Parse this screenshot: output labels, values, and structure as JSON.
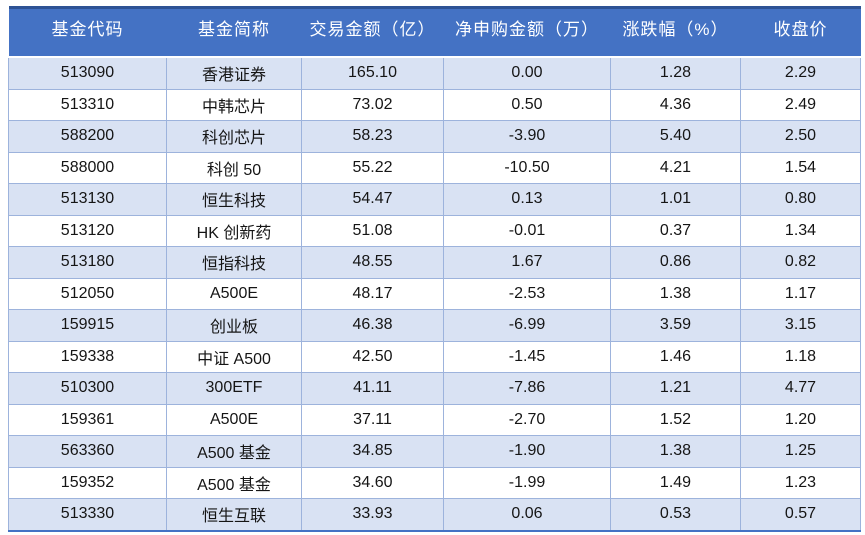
{
  "chart_data": {
    "type": "table",
    "title": "",
    "columns": [
      "基金代码",
      "基金简称",
      "交易金额（亿）",
      "净申购金额（万）",
      "涨跌幅（%）",
      "收盘价"
    ],
    "column_keys": [
      "fund-code",
      "fund-name",
      "trade-amount-yi",
      "net-subscription-wan",
      "change-pct",
      "close-price"
    ],
    "rows": [
      [
        "513090",
        "香港证券",
        "165.10",
        "0.00",
        "1.28",
        "2.29"
      ],
      [
        "513310",
        "中韩芯片",
        "73.02",
        "0.50",
        "4.36",
        "2.49"
      ],
      [
        "588200",
        "科创芯片",
        "58.23",
        "-3.90",
        "5.40",
        "2.50"
      ],
      [
        "588000",
        "科创 50",
        "55.22",
        "-10.50",
        "4.21",
        "1.54"
      ],
      [
        "513130",
        "恒生科技",
        "54.47",
        "0.13",
        "1.01",
        "0.80"
      ],
      [
        "513120",
        "HK 创新药",
        "51.08",
        "-0.01",
        "0.37",
        "1.34"
      ],
      [
        "513180",
        "恒指科技",
        "48.55",
        "1.67",
        "0.86",
        "0.82"
      ],
      [
        "512050",
        "A500E",
        "48.17",
        "-2.53",
        "1.38",
        "1.17"
      ],
      [
        "159915",
        "创业板",
        "46.38",
        "-6.99",
        "3.59",
        "3.15"
      ],
      [
        "159338",
        "中证 A500",
        "42.50",
        "-1.45",
        "1.46",
        "1.18"
      ],
      [
        "510300",
        "300ETF",
        "41.11",
        "-7.86",
        "1.21",
        "4.77"
      ],
      [
        "159361",
        "A500E",
        "37.11",
        "-2.70",
        "1.52",
        "1.20"
      ],
      [
        "563360",
        "A500 基金",
        "34.85",
        "-1.90",
        "1.38",
        "1.25"
      ],
      [
        "159352",
        "A500 基金",
        "34.60",
        "-1.99",
        "1.49",
        "1.23"
      ],
      [
        "513330",
        "恒生互联",
        "33.93",
        "0.06",
        "0.53",
        "0.57"
      ]
    ]
  },
  "colors": {
    "header_bg": "#4472C4",
    "header_text": "#FFFFFF",
    "band_row_bg": "#D9E2F3",
    "row_bg": "#FFFFFF",
    "grid_border": "#9DB3DC",
    "outer_top_border": "#2E5395",
    "outer_bottom_border": "#4472C4",
    "cell_text": "#151515"
  }
}
